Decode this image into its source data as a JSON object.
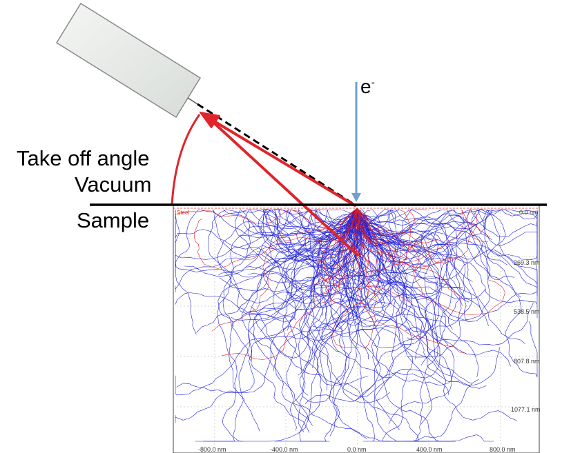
{
  "labels": {
    "take_off_angle": "Take off angle",
    "vacuum": "Vacuum",
    "sample": "Sample",
    "beam": "e",
    "beam_sup": "-",
    "material": "Steel"
  },
  "depth_ticks": [
    "0.0 nm",
    "269.3 nm",
    "538.5 nm",
    "807.8 nm",
    "1077.1 nm"
  ],
  "x_ticks": [
    "-800.0 nm",
    "-400.0 nm",
    "0.0 nm",
    "400.0 nm",
    "800.0 nm"
  ],
  "colors": {
    "electron_beam": "#6f9fd0",
    "xray_arrow": "#e0242a",
    "backscatter_trajectories": "#e02020",
    "absorbed_trajectories": "#2020d8",
    "detector_fill": "#e9ecea"
  },
  "icons": {
    "detector": "detector-icon"
  }
}
